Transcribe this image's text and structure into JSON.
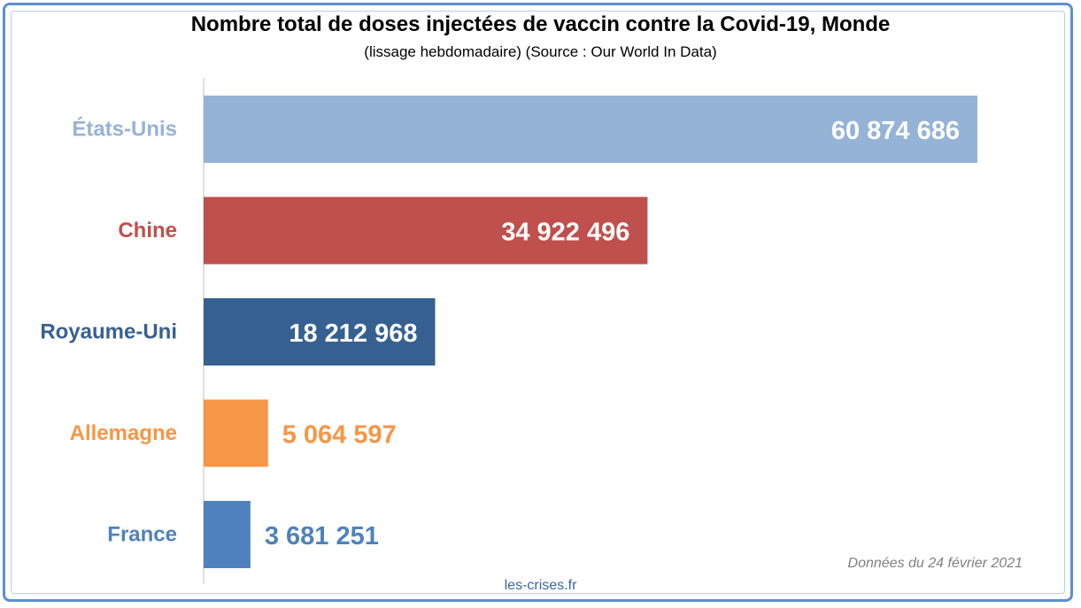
{
  "chart_data": {
    "type": "bar",
    "orientation": "horizontal",
    "title": "Nombre total de doses injectées de vaccin contre la Covid-19, Monde",
    "subtitle": "(lissage hebdomadaire) (Source : Our World In Data)",
    "categories": [
      "États-Unis",
      "Chine",
      "Royaume-Uni",
      "Allemagne",
      "France"
    ],
    "values": [
      60874686,
      34922496,
      18212968,
      5064597,
      3681251
    ],
    "value_labels": [
      "60 874 686",
      "34 922 496",
      "18 212 968",
      "5 064 597",
      "3 681 251"
    ],
    "colors": [
      "#95b3d7",
      "#c0504d",
      "#376092",
      "#f79646",
      "#4f81bd"
    ],
    "xlim": [
      0,
      61000000
    ],
    "grid": false,
    "legend": "none"
  },
  "footer": {
    "date_note": "Données du 24 février 2021",
    "credit": "les-crises.fr"
  }
}
